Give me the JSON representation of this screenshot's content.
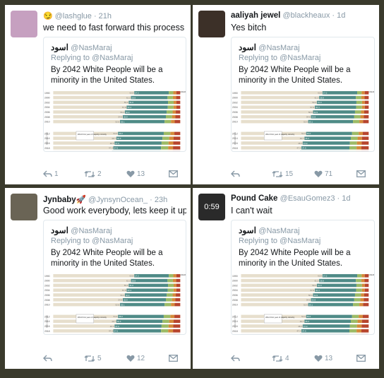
{
  "tweets": [
    {
      "name": "",
      "handle": "@lashglue · 21h",
      "emoji": "😏",
      "text": "we need to fast forward this process",
      "retweets": "2",
      "likes": "13",
      "avatar_color": "#c6a0c0"
    },
    {
      "name": "aaliyah jewel",
      "handle": "@blackheaux · 1d",
      "text": "Yes bitch",
      "retweets": "15",
      "likes": "71",
      "avatar_color": "#3c3028"
    },
    {
      "name": "Jynbaby🚀",
      "handle": "@JynsynOcean_ · 23h",
      "text": "Good work everybody, lets keep it up.",
      "retweets": "5",
      "likes": "12",
      "avatar_color": "#6a6455"
    },
    {
      "name": "Pound Cake",
      "handle": "@EsauGomez3 · 1d",
      "text": "I can't wait",
      "retweets": "4",
      "likes": "13",
      "avatar_color": "#2a2a2a",
      "avatar_text": "0:59"
    }
  ],
  "quoted": {
    "name": "اسود",
    "handle": "@NasMaraj",
    "reply": "Replying to @NasMaraj",
    "text": "By 2042 White People will be a minority in the United States."
  },
  "chart_data": {
    "type": "bar",
    "stacked": true,
    "orientation": "horizontal",
    "categories": [
      "1990",
      "2000",
      "2002",
      "2004",
      "2006",
      "2008",
      "2010",
      "2012",
      "2014",
      "2016",
      "2018",
      "2020",
      "2022"
    ],
    "series": [
      {
        "name": "White",
        "values": [
          63.8,
          61.2,
          59.4,
          57.8,
          56.4,
          54.8,
          52.6,
          51.0,
          49.7,
          48.3,
          47.3,
          46.2,
          45.3
        ],
        "color": "#e7dfcd"
      },
      {
        "name": "",
        "values": [
          27.2,
          28.8,
          31.0,
          32.4,
          32.9,
          33.9,
          35.1,
          36.0,
          36.3,
          37.0,
          37.6,
          38.2,
          38.7
        ],
        "color": "#4f8b87"
      },
      {
        "name": "",
        "values": [
          3.5,
          4.2,
          4.4,
          4.5,
          4.7,
          4.8,
          5.0,
          5.2,
          5.3,
          5.5,
          5.6,
          5.7,
          5.8
        ],
        "color": "#9dbb66"
      },
      {
        "name": "",
        "values": [
          2.4,
          2.6,
          2.2,
          2.3,
          2.5,
          2.7,
          2.9,
          3.2,
          3.5,
          3.7,
          3.8,
          4.0,
          4.2
        ],
        "color": "#d48a3a"
      },
      {
        "name": "",
        "values": [
          3.1,
          3.2,
          3.0,
          3.0,
          3.5,
          3.8,
          4.4,
          4.6,
          5.2,
          5.5,
          5.7,
          5.9,
          6.0
        ],
        "color": "#b7452e"
      }
    ],
    "legend_label": "AMERICAN INDIAN/ ALASKA NATIVE",
    "annotation": "2014 First year of majority minority",
    "side_label": "PROJECTED",
    "xlim": [
      0,
      100
    ]
  }
}
